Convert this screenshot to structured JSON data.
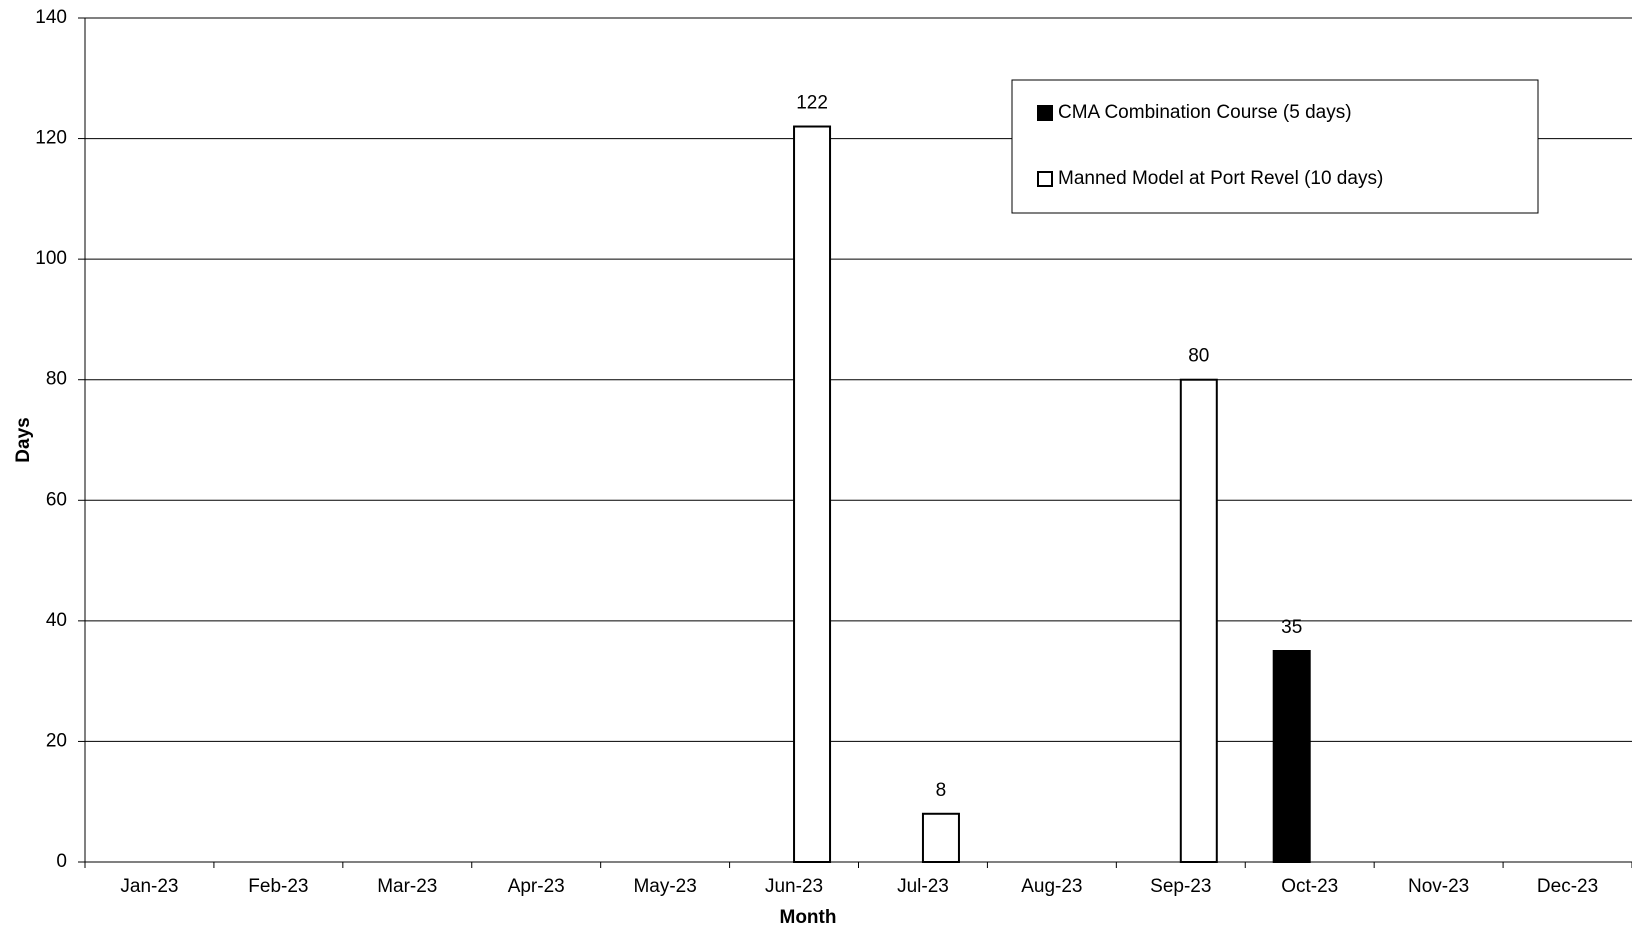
{
  "chart_data": {
    "type": "bar",
    "xlabel": "Month",
    "ylabel": "Days",
    "categories": [
      "Jan-23",
      "Feb-23",
      "Mar-23",
      "Apr-23",
      "May-23",
      "Jun-23",
      "Jul-23",
      "Aug-23",
      "Sep-23",
      "Oct-23",
      "Nov-23",
      "Dec-23"
    ],
    "series": [
      {
        "name": "CMA Combination Course (5 days)",
        "color": "#000000",
        "values": [
          null,
          null,
          null,
          null,
          null,
          null,
          null,
          null,
          null,
          35,
          null,
          null
        ]
      },
      {
        "name": "Manned Model at Port Revel (10 days)",
        "color": "#ffffff",
        "values": [
          null,
          null,
          null,
          null,
          null,
          122,
          8,
          null,
          80,
          null,
          null,
          null
        ]
      }
    ],
    "ylim": [
      0,
      140
    ],
    "yticks": [
      0,
      20,
      40,
      60,
      80,
      100,
      120,
      140
    ],
    "grid": true,
    "legend": "top-right"
  }
}
